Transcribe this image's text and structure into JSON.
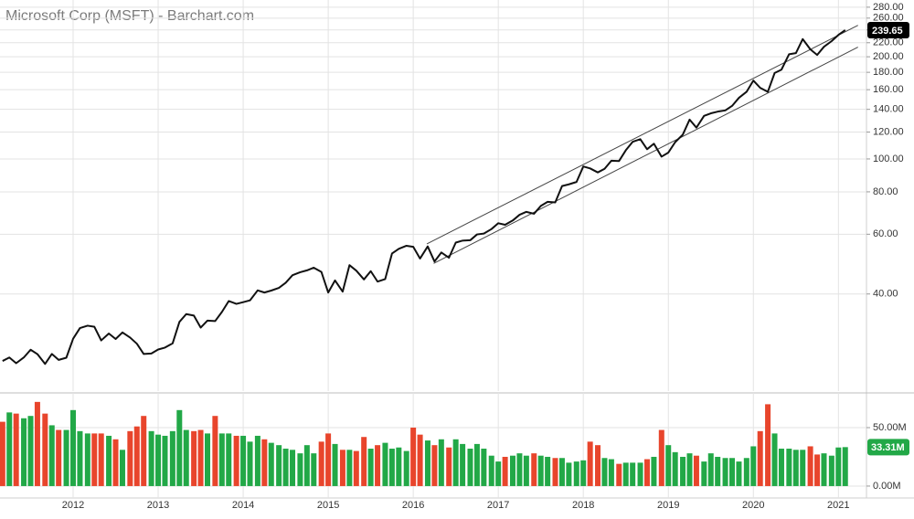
{
  "chart_data": [
    {
      "type": "line",
      "title": "Microsoft Corp (MSFT) - Barchart.com",
      "color": "#111111",
      "log_scale": true,
      "grid": true,
      "x": [
        2011.17,
        2011.25,
        2011.33,
        2011.42,
        2011.5,
        2011.58,
        2011.67,
        2011.75,
        2011.83,
        2011.92,
        2012,
        2012.08,
        2012.17,
        2012.25,
        2012.33,
        2012.42,
        2012.5,
        2012.58,
        2012.67,
        2012.75,
        2012.83,
        2012.92,
        2013,
        2013.08,
        2013.17,
        2013.25,
        2013.33,
        2013.42,
        2013.5,
        2013.58,
        2013.67,
        2013.75,
        2013.83,
        2013.92,
        2014,
        2014.08,
        2014.17,
        2014.25,
        2014.33,
        2014.42,
        2014.5,
        2014.58,
        2014.67,
        2014.75,
        2014.83,
        2014.92,
        2015,
        2015.08,
        2015.17,
        2015.25,
        2015.33,
        2015.42,
        2015.5,
        2015.58,
        2015.67,
        2015.75,
        2015.83,
        2015.92,
        2016,
        2016.08,
        2016.17,
        2016.25,
        2016.33,
        2016.42,
        2016.5,
        2016.58,
        2016.67,
        2016.75,
        2016.83,
        2016.92,
        2017,
        2017.08,
        2017.17,
        2017.25,
        2017.33,
        2017.42,
        2017.5,
        2017.58,
        2017.67,
        2017.75,
        2017.83,
        2017.92,
        2018,
        2018.08,
        2018.17,
        2018.25,
        2018.33,
        2018.42,
        2018.5,
        2018.58,
        2018.67,
        2018.75,
        2018.83,
        2018.92,
        2019,
        2019.08,
        2019.17,
        2019.25,
        2019.33,
        2019.42,
        2019.5,
        2019.58,
        2019.67,
        2019.75,
        2019.83,
        2019.92,
        2020,
        2020.08,
        2020.17,
        2020.25,
        2020.33,
        2020.42,
        2020.5,
        2020.58,
        2020.67,
        2020.75,
        2020.83,
        2020.92,
        2021,
        2021.08
      ],
      "values": [
        25.39,
        26.0,
        25.01,
        26.0,
        27.4,
        26.6,
        24.89,
        26.63,
        25.58,
        25.96,
        29.53,
        31.74,
        32.26,
        32.02,
        29.19,
        30.59,
        29.47,
        30.82,
        29.76,
        28.54,
        26.62,
        26.71,
        27.45,
        27.8,
        28.61,
        33.1,
        34.9,
        34.55,
        31.84,
        33.4,
        33.28,
        35.41,
        38.13,
        37.41,
        37.84,
        38.31,
        40.99,
        40.4,
        40.94,
        41.7,
        43.16,
        45.43,
        46.36,
        46.95,
        47.81,
        46.45,
        40.4,
        43.85,
        40.65,
        48.64,
        46.86,
        44.15,
        46.7,
        43.52,
        44.26,
        52.64,
        54.35,
        55.48,
        55.09,
        50.88,
        55.23,
        49.87,
        53.0,
        51.17,
        56.68,
        57.46,
        57.6,
        59.92,
        60.26,
        62.14,
        64.65,
        63.98,
        65.86,
        68.46,
        69.84,
        68.93,
        72.7,
        74.77,
        74.49,
        83.18,
        84.17,
        85.54,
        95.01,
        93.77,
        91.27,
        93.52,
        98.84,
        98.61,
        106.08,
        112.33,
        114.37,
        106.81,
        110.89,
        101.57,
        104.43,
        112.03,
        117.94,
        130.6,
        123.68,
        133.96,
        136.27,
        137.86,
        139.03,
        143.37,
        151.38,
        157.7,
        170.23,
        162.01,
        157.71,
        179.21,
        183.25,
        203.51,
        205.01,
        225.53,
        210.33,
        202.47,
        214.07,
        222.42,
        231.96,
        239.65
      ],
      "trendlines": [
        {
          "x": [
            2016.16,
            2021.23
          ],
          "values": [
            56.2,
            247.6
          ]
        },
        {
          "x": [
            2016.24,
            2021.23
          ],
          "values": [
            49.2,
            213.6
          ]
        }
      ],
      "xlim": [
        2011.14,
        2021.33
      ],
      "xticks": [
        2012,
        2013,
        2014,
        2015,
        2016,
        2017,
        2018,
        2019,
        2020,
        2021
      ],
      "ylim": [
        20.7,
        294
      ],
      "yticks": [
        {
          "value": 40,
          "label": "40.00"
        },
        {
          "value": 60,
          "label": "60.00"
        },
        {
          "value": 80,
          "label": "80.00"
        },
        {
          "value": 100,
          "label": "100.00"
        },
        {
          "value": 120,
          "label": "120.00"
        },
        {
          "value": 140,
          "label": "140.00"
        },
        {
          "value": 160,
          "label": "160.00"
        },
        {
          "value": 180,
          "label": "180.00"
        },
        {
          "value": 200,
          "label": "200.00"
        },
        {
          "value": 220,
          "label": "220.00"
        },
        {
          "value": 240,
          "label": "240.00"
        },
        {
          "value": 260,
          "label": "260.00"
        },
        {
          "value": 280,
          "label": "280.00"
        }
      ]
    },
    {
      "type": "bar",
      "grid": true,
      "x": [
        2011.17,
        2011.25,
        2011.33,
        2011.42,
        2011.5,
        2011.58,
        2011.67,
        2011.75,
        2011.83,
        2011.92,
        2012,
        2012.08,
        2012.17,
        2012.25,
        2012.33,
        2012.42,
        2012.5,
        2012.58,
        2012.67,
        2012.75,
        2012.83,
        2012.92,
        2013,
        2013.08,
        2013.17,
        2013.25,
        2013.33,
        2013.42,
        2013.5,
        2013.58,
        2013.67,
        2013.75,
        2013.83,
        2013.92,
        2014,
        2014.08,
        2014.17,
        2014.25,
        2014.33,
        2014.42,
        2014.5,
        2014.58,
        2014.67,
        2014.75,
        2014.83,
        2014.92,
        2015,
        2015.08,
        2015.17,
        2015.25,
        2015.33,
        2015.42,
        2015.5,
        2015.58,
        2015.67,
        2015.75,
        2015.83,
        2015.92,
        2016,
        2016.08,
        2016.17,
        2016.25,
        2016.33,
        2016.42,
        2016.5,
        2016.58,
        2016.67,
        2016.75,
        2016.83,
        2016.92,
        2017,
        2017.08,
        2017.17,
        2017.25,
        2017.33,
        2017.42,
        2017.5,
        2017.58,
        2017.67,
        2017.75,
        2017.83,
        2017.92,
        2018,
        2018.08,
        2018.17,
        2018.25,
        2018.33,
        2018.42,
        2018.5,
        2018.58,
        2018.67,
        2018.75,
        2018.83,
        2018.92,
        2019,
        2019.08,
        2019.17,
        2019.25,
        2019.33,
        2019.42,
        2019.5,
        2019.58,
        2019.67,
        2019.75,
        2019.83,
        2019.92,
        2020,
        2020.08,
        2020.17,
        2020.25,
        2020.33,
        2020.42,
        2020.5,
        2020.58,
        2020.67,
        2020.75,
        2020.83,
        2020.92,
        2021,
        2021.08
      ],
      "values": [
        55,
        63,
        62,
        58,
        60,
        72,
        62,
        52,
        48,
        48,
        65,
        47,
        45,
        45,
        45,
        43,
        40,
        31,
        47,
        51,
        60,
        47,
        44,
        43,
        47,
        65,
        48,
        47,
        48,
        45,
        60,
        45,
        45,
        43,
        43,
        38,
        43,
        40,
        37,
        35,
        32,
        31,
        28,
        35,
        28,
        38,
        45,
        36,
        31,
        31,
        30,
        42,
        32,
        35,
        37,
        32,
        33,
        30,
        50,
        44,
        39,
        35,
        40,
        33,
        40,
        36,
        32,
        36,
        32,
        26,
        21,
        25,
        26,
        28,
        26,
        28,
        26,
        25,
        24,
        24,
        20,
        21,
        22,
        38,
        35,
        24,
        23,
        19,
        20,
        20,
        20,
        23,
        25,
        48,
        35,
        29,
        25,
        28,
        26,
        21,
        28,
        25,
        24,
        24,
        21,
        24,
        34,
        47,
        70,
        45,
        32,
        32,
        31,
        31,
        34,
        27,
        28,
        26,
        33,
        33.31
      ],
      "colors": [
        "#e8452c",
        "#22a847",
        "#e8452c",
        "#22a847",
        "#22a847",
        "#e8452c",
        "#e8452c",
        "#22a847",
        "#e8452c",
        "#22a847",
        "#22a847",
        "#22a847",
        "#22a847",
        "#e8452c",
        "#e8452c",
        "#22a847",
        "#e8452c",
        "#22a847",
        "#e8452c",
        "#e8452c",
        "#e8452c",
        "#22a847",
        "#22a847",
        "#22a847",
        "#22a847",
        "#22a847",
        "#22a847",
        "#e8452c",
        "#e8452c",
        "#22a847",
        "#e8452c",
        "#22a847",
        "#22a847",
        "#e8452c",
        "#22a847",
        "#22a847",
        "#22a847",
        "#e8452c",
        "#22a847",
        "#22a847",
        "#22a847",
        "#22a847",
        "#22a847",
        "#22a847",
        "#22a847",
        "#e8452c",
        "#e8452c",
        "#22a847",
        "#e8452c",
        "#22a847",
        "#e8452c",
        "#e8452c",
        "#22a847",
        "#e8452c",
        "#22a847",
        "#22a847",
        "#22a847",
        "#22a847",
        "#e8452c",
        "#e8452c",
        "#22a847",
        "#e8452c",
        "#22a847",
        "#e8452c",
        "#22a847",
        "#22a847",
        "#22a847",
        "#22a847",
        "#22a847",
        "#22a847",
        "#22a847",
        "#e8452c",
        "#22a847",
        "#22a847",
        "#22a847",
        "#e8452c",
        "#22a847",
        "#22a847",
        "#e8452c",
        "#22a847",
        "#22a847",
        "#22a847",
        "#22a847",
        "#e8452c",
        "#e8452c",
        "#22a847",
        "#22a847",
        "#e8452c",
        "#22a847",
        "#22a847",
        "#22a847",
        "#e8452c",
        "#22a847",
        "#e8452c",
        "#22a847",
        "#22a847",
        "#22a847",
        "#22a847",
        "#e8452c",
        "#22a847",
        "#22a847",
        "#22a847",
        "#22a847",
        "#22a847",
        "#22a847",
        "#22a847",
        "#22a847",
        "#e8452c",
        "#e8452c",
        "#22a847",
        "#22a847",
        "#22a847",
        "#22a847",
        "#22a847",
        "#e8452c",
        "#e8452c",
        "#22a847",
        "#22a847",
        "#22a847",
        "#22a847"
      ],
      "last_label": "33.31M",
      "xlim": [
        2011.14,
        2021.33
      ],
      "xticks": [
        2012,
        2013,
        2014,
        2015,
        2016,
        2017,
        2018,
        2019,
        2020,
        2021
      ],
      "ylim": [
        -10.2,
        79.7
      ],
      "yticks": [
        {
          "value": 0,
          "label": "0.00M"
        },
        {
          "value": 50,
          "label": "50.00M"
        }
      ]
    }
  ]
}
